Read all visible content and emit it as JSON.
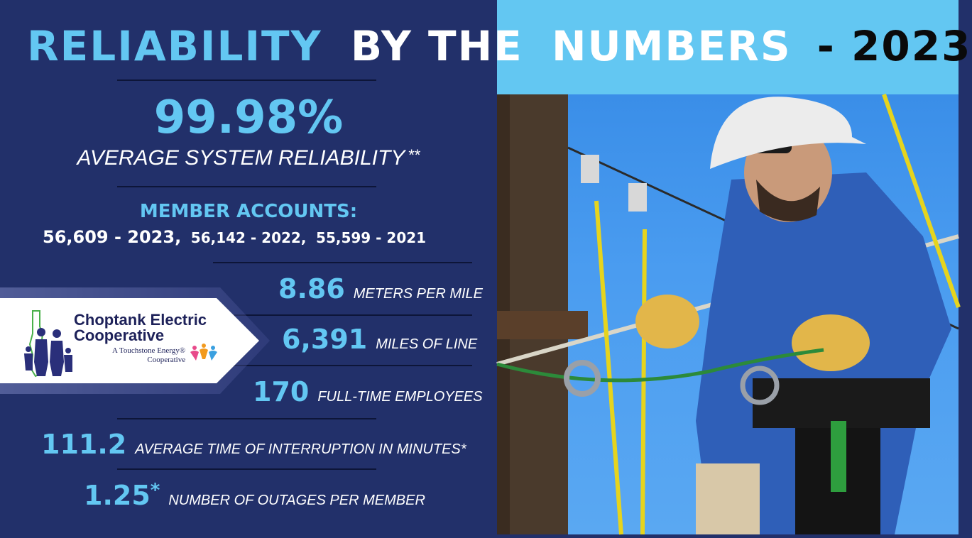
{
  "title": {
    "word1": "RELIABILITY",
    "word2": "BY THE",
    "word3": "NUMBERS",
    "word4": "- 2023"
  },
  "reliability": {
    "value": "99.98%",
    "label": "AVERAGE SYSTEM RELIABILITY",
    "footnote": "**"
  },
  "member_accounts": {
    "heading": "MEMBER ACCOUNTS:",
    "line1": "56,609 - 2023,",
    "line2": "56,142 - 2022,",
    "line3": "55,599 - 2021"
  },
  "stats": [
    {
      "value": "8.86",
      "label": "METERS PER MILE"
    },
    {
      "value": "6,391",
      "label": "MILES OF LINE"
    },
    {
      "value": "170",
      "label": "FULL-TIME EMPLOYEES"
    },
    {
      "value": "111.2",
      "label": "AVERAGE TIME OF INTERRUPTION IN MINUTES*"
    },
    {
      "value": "1.25",
      "footnote": "*",
      "label": "NUMBER OF OUTAGES PER MEMBER"
    }
  ],
  "logo": {
    "name_line1": "Choptank Electric",
    "name_line2": "Cooperative",
    "tagline1": "A Touchstone Energy®",
    "tagline2": "Cooperative"
  },
  "colors": {
    "panel": "#22306a",
    "accent": "#63c7f2",
    "text": "#ffffff"
  },
  "photo": {
    "subject": "lineworker-on-utility-pole"
  }
}
